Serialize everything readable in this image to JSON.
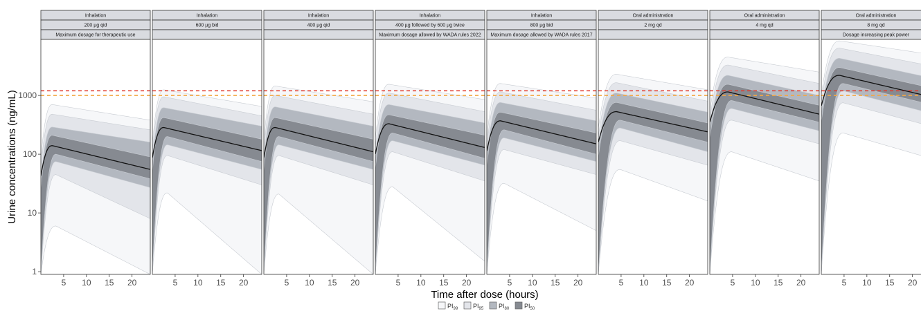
{
  "chart_data": {
    "type": "area",
    "title": "",
    "xlabel": "Time after dose (hours)",
    "ylabel": "Urine concentrations (ng/mL)",
    "x_ticks": [
      5,
      10,
      15,
      20
    ],
    "x_range": [
      0,
      24
    ],
    "y_scale": "log",
    "y_ticks": [
      1,
      10,
      100,
      1000
    ],
    "y_range": [
      0.9,
      9000
    ],
    "reference_lines": [
      {
        "value": 1200,
        "color": "#e03a2e"
      },
      {
        "value": 1000,
        "color": "#f4a742"
      }
    ],
    "legend": [
      {
        "label": "PI",
        "sub": "99",
        "color": "#f6f7f9"
      },
      {
        "label": "PI",
        "sub": "95",
        "color": "#e3e5ea"
      },
      {
        "label": "PI",
        "sub": "80",
        "color": "#b3b8c0"
      },
      {
        "label": "PI",
        "sub": "50",
        "color": "#868a91"
      }
    ],
    "panels": [
      {
        "route": "Inhalation",
        "regimen": "200 µg qid",
        "note": "Maximum dosage for therapeutic use",
        "median": {
          "tpeak": 2.5,
          "peak": 140,
          "end": 55
        },
        "bands": [
          {
            "level": "PI99",
            "lo_peak": 6,
            "lo_end": 0.9,
            "hi_peak": 700,
            "hi_end": 380
          },
          {
            "level": "PI95",
            "lo_peak": 45,
            "lo_end": 8,
            "hi_peak": 480,
            "hi_end": 260
          },
          {
            "level": "PI80",
            "lo_peak": 75,
            "lo_end": 27,
            "hi_peak": 290,
            "hi_end": 160
          },
          {
            "level": "PI50",
            "lo_peak": 100,
            "lo_end": 38,
            "hi_peak": 210,
            "hi_end": 90
          }
        ]
      },
      {
        "route": "Inhalation",
        "regimen": "600 µg bid",
        "note": "",
        "median": {
          "tpeak": 2.5,
          "peak": 285,
          "end": 115
        },
        "bands": [
          {
            "level": "PI99",
            "lo_peak": 22,
            "lo_end": 0.9,
            "hi_peak": 1250,
            "hi_end": 650
          },
          {
            "level": "PI95",
            "lo_peak": 95,
            "lo_end": 30,
            "hi_peak": 950,
            "hi_end": 450
          },
          {
            "level": "PI80",
            "lo_peak": 145,
            "lo_end": 55,
            "hi_peak": 620,
            "hi_end": 300
          },
          {
            "level": "PI50",
            "lo_peak": 200,
            "lo_end": 75,
            "hi_peak": 420,
            "hi_end": 180
          }
        ]
      },
      {
        "route": "Inhalation",
        "regimen": "400 µg qid",
        "note": "",
        "median": {
          "tpeak": 2.5,
          "peak": 285,
          "end": 110
        },
        "bands": [
          {
            "level": "PI99",
            "lo_peak": 21,
            "lo_end": 0.9,
            "hi_peak": 1450,
            "hi_end": 780
          },
          {
            "level": "PI95",
            "lo_peak": 95,
            "lo_end": 30,
            "hi_peak": 1000,
            "hi_end": 480
          },
          {
            "level": "PI80",
            "lo_peak": 145,
            "lo_end": 55,
            "hi_peak": 640,
            "hi_end": 300
          },
          {
            "level": "PI50",
            "lo_peak": 200,
            "lo_end": 75,
            "hi_peak": 420,
            "hi_end": 180
          }
        ]
      },
      {
        "route": "Inhalation",
        "regimen": "400 µg followed by 600 µg twice",
        "note": "Maximum dosage allowed by WADA rules 2022",
        "median": {
          "tpeak": 3,
          "peak": 330,
          "end": 130
        },
        "bands": [
          {
            "level": "PI99",
            "lo_peak": 28,
            "lo_end": 1.5,
            "hi_peak": 1550,
            "hi_end": 850
          },
          {
            "level": "PI95",
            "lo_peak": 110,
            "lo_end": 35,
            "hi_peak": 1100,
            "hi_end": 530
          },
          {
            "level": "PI80",
            "lo_peak": 170,
            "lo_end": 65,
            "hi_peak": 700,
            "hi_end": 340
          },
          {
            "level": "PI50",
            "lo_peak": 230,
            "lo_end": 85,
            "hi_peak": 470,
            "hi_end": 210
          }
        ]
      },
      {
        "route": "Inhalation",
        "regimen": "800 µg bid",
        "note": "Maximum dosage allowed by WADA rules 2017",
        "median": {
          "tpeak": 3,
          "peak": 370,
          "end": 150
        },
        "bands": [
          {
            "level": "PI99",
            "lo_peak": 32,
            "lo_end": 5,
            "hi_peak": 1600,
            "hi_end": 900
          },
          {
            "level": "PI95",
            "lo_peak": 120,
            "lo_end": 45,
            "hi_peak": 1150,
            "hi_end": 560
          },
          {
            "level": "PI80",
            "lo_peak": 190,
            "lo_end": 75,
            "hi_peak": 760,
            "hi_end": 370
          },
          {
            "level": "PI50",
            "lo_peak": 260,
            "lo_end": 100,
            "hi_peak": 520,
            "hi_end": 230
          }
        ]
      },
      {
        "route": "Oral administration",
        "regimen": "2 mg qd",
        "note": "",
        "median": {
          "tpeak": 4,
          "peak": 530,
          "end": 240
        },
        "bands": [
          {
            "level": "PI99",
            "lo_peak": 55,
            "lo_end": 16,
            "hi_peak": 2300,
            "hi_end": 1250
          },
          {
            "level": "PI95",
            "lo_peak": 170,
            "lo_end": 65,
            "hi_peak": 1650,
            "hi_end": 800
          },
          {
            "level": "PI80",
            "lo_peak": 280,
            "lo_end": 110,
            "hi_peak": 1100,
            "hi_end": 520
          },
          {
            "level": "PI50",
            "lo_peak": 380,
            "lo_end": 160,
            "hi_peak": 760,
            "hi_end": 340
          }
        ]
      },
      {
        "route": "Oral administration",
        "regimen": "4 mg qd",
        "note": "",
        "median": {
          "tpeak": 4,
          "peak": 1150,
          "end": 480
        },
        "bands": [
          {
            "level": "PI99",
            "lo_peak": 110,
            "lo_end": 35,
            "hi_peak": 4500,
            "hi_end": 2500
          },
          {
            "level": "PI95",
            "lo_peak": 380,
            "lo_end": 150,
            "hi_peak": 3300,
            "hi_end": 1600
          },
          {
            "level": "PI80",
            "lo_peak": 600,
            "lo_end": 250,
            "hi_peak": 2200,
            "hi_end": 1000
          },
          {
            "level": "PI50",
            "lo_peak": 820,
            "lo_end": 350,
            "hi_peak": 1550,
            "hi_end": 680
          }
        ]
      },
      {
        "route": "Oral administration",
        "regimen": "8 mg qd",
        "note": "Dosage increasing peak power",
        "median": {
          "tpeak": 4,
          "peak": 2200,
          "end": 950
        },
        "bands": [
          {
            "level": "PI99",
            "lo_peak": 230,
            "lo_end": 85,
            "hi_peak": 8500,
            "hi_end": 5000
          },
          {
            "level": "PI95",
            "lo_peak": 750,
            "lo_end": 300,
            "hi_peak": 6400,
            "hi_end": 3200
          },
          {
            "level": "PI80",
            "lo_peak": 1200,
            "lo_end": 500,
            "hi_peak": 4300,
            "hi_end": 2000
          },
          {
            "level": "PI50",
            "lo_peak": 1600,
            "lo_end": 700,
            "hi_peak": 3000,
            "hi_end": 1350
          }
        ]
      }
    ]
  }
}
